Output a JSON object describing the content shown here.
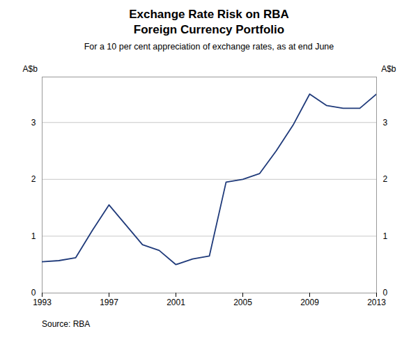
{
  "chart_data": {
    "type": "line",
    "title": "Exchange Rate Risk on RBA\nForeign Currency Portfolio",
    "subtitle": "For a 10 per cent appreciation of exchange rates, as at end June",
    "ylabel": "A$b",
    "y2label": "A$b",
    "source": "Source: RBA",
    "color": "#1f3a7a",
    "x": [
      1993,
      1994,
      1995,
      1996,
      1997,
      1998,
      1999,
      2000,
      2001,
      2002,
      2003,
      2004,
      2005,
      2006,
      2007,
      2008,
      2009,
      2010,
      2011,
      2012,
      2013
    ],
    "values": [
      0.55,
      0.57,
      0.62,
      1.1,
      1.55,
      1.2,
      0.85,
      0.75,
      0.5,
      0.6,
      0.65,
      1.95,
      2.0,
      2.1,
      2.5,
      2.95,
      3.5,
      3.3,
      3.25,
      3.25,
      3.5
    ],
    "xlim": [
      1993,
      2013
    ],
    "xticks": [
      1993,
      1997,
      2001,
      2005,
      2009,
      2013
    ],
    "ylim": [
      0,
      3.8
    ],
    "yticks": [
      0,
      1,
      2,
      3
    ],
    "y2lim": [
      0,
      3.8
    ],
    "y2ticks": [
      0,
      1,
      2,
      3
    ],
    "grid": true
  }
}
